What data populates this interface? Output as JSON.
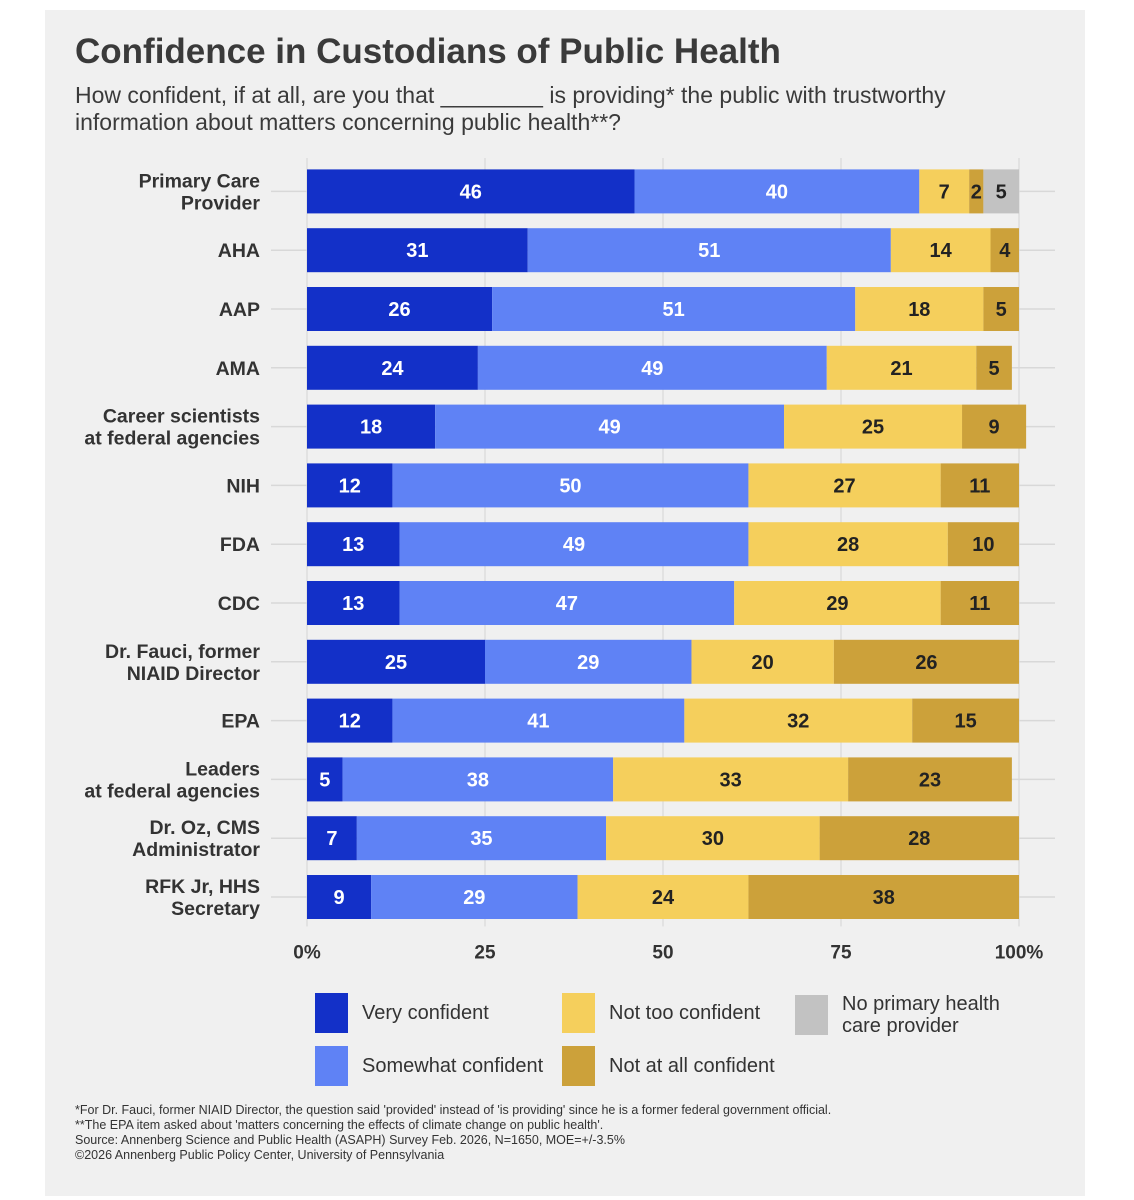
{
  "title": "Confidence in Custodians of Public Health",
  "subtitle": "How confident, if at all, are you that ________ is providing* the public with trustworthy information about matters concerning public health**?",
  "chart_data": {
    "type": "bar",
    "orientation": "horizontal-stacked",
    "categories": [
      [
        "Primary Care",
        "Provider"
      ],
      [
        "AHA"
      ],
      [
        "AAP"
      ],
      [
        "AMA"
      ],
      [
        "Career scientists",
        "at federal agencies"
      ],
      [
        "NIH"
      ],
      [
        "FDA"
      ],
      [
        "CDC"
      ],
      [
        "Dr. Fauci, former",
        "NIAID Director"
      ],
      [
        "EPA"
      ],
      [
        "Leaders",
        "at federal agencies"
      ],
      [
        "Dr. Oz, CMS",
        "Administrator"
      ],
      [
        "RFK Jr, HHS",
        "Secretary"
      ]
    ],
    "series": [
      {
        "name": "Very confident",
        "color": "#1330c8",
        "label_color": "#ffffff",
        "values": [
          46,
          31,
          26,
          24,
          18,
          12,
          13,
          13,
          25,
          12,
          5,
          7,
          9
        ]
      },
      {
        "name": "Somewhat confident",
        "color": "#5f82f5",
        "label_color": "#ffffff",
        "values": [
          40,
          51,
          51,
          49,
          49,
          50,
          49,
          47,
          29,
          41,
          38,
          35,
          29
        ]
      },
      {
        "name": "Not too confident",
        "color": "#f5cf5c",
        "label_color": "#222222",
        "values": [
          7,
          14,
          18,
          21,
          25,
          27,
          28,
          29,
          20,
          32,
          33,
          30,
          24
        ]
      },
      {
        "name": "Not at all confident",
        "color": "#cca13a",
        "label_color": "#222222",
        "values": [
          2,
          4,
          5,
          5,
          9,
          11,
          10,
          11,
          26,
          15,
          23,
          28,
          38
        ]
      },
      {
        "name": "No primary health care provider",
        "color": "#c2c2c2",
        "label_color": "#222222",
        "values": [
          5,
          0,
          0,
          0,
          0,
          0,
          0,
          0,
          0,
          0,
          0,
          0,
          0
        ]
      }
    ],
    "xlim": [
      0,
      100
    ],
    "xticks": [
      "0%",
      "25",
      "50",
      "75",
      "100%"
    ],
    "xtick_values": [
      0,
      25,
      50,
      75,
      100
    ],
    "grid": true,
    "legend_position": "bottom"
  },
  "legend": [
    {
      "label": "Very confident",
      "color": "#1330c8"
    },
    {
      "label": "Not too confident",
      "color": "#f5cf5c"
    },
    {
      "label": "No primary health care provider",
      "color": "#c2c2c2"
    },
    {
      "label": "Somewhat confident",
      "color": "#5f82f5"
    },
    {
      "label": "Not at all confident",
      "color": "#cca13a"
    }
  ],
  "footnotes": [
    "*For Dr. Fauci, former NIAID Director, the question said 'provided' instead of 'is providing' since he is a former federal government official.",
    "**The EPA item asked about 'matters concerning the effects of climate change on public health'.",
    "Source: Annenberg Science and Public Health (ASAPH) Survey Feb. 2026, N=1650, MOE=+/-3.5%",
    "©2026 Annenberg Public Policy Center, University of Pennsylvania"
  ]
}
